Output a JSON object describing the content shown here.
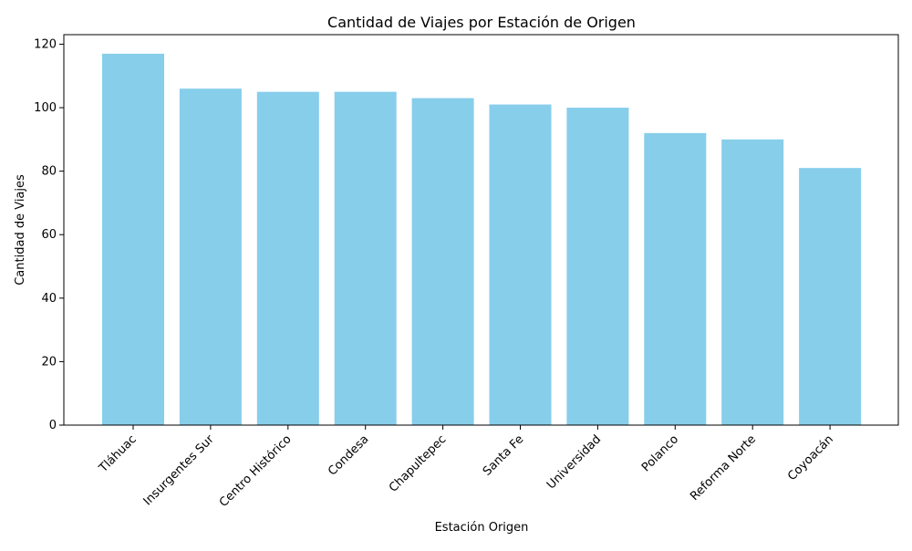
{
  "chart_data": {
    "type": "bar",
    "title": "Cantidad de Viajes por Estación de Origen",
    "xlabel": "Estación Origen",
    "ylabel": "Cantidad de Viajes",
    "categories": [
      "Tláhuac",
      "Insurgentes Sur",
      "Centro Histórico",
      "Condesa",
      "Chapultepec",
      "Santa Fe",
      "Universidad",
      "Polanco",
      "Reforma Norte",
      "Coyoacán"
    ],
    "values": [
      117,
      106,
      105,
      105,
      103,
      101,
      100,
      92,
      90,
      81
    ],
    "ylim": [
      0,
      123
    ],
    "yticks": [
      0,
      20,
      40,
      60,
      80,
      100,
      120
    ],
    "bar_color": "#87ceeb",
    "grid": false,
    "legend": false
  }
}
